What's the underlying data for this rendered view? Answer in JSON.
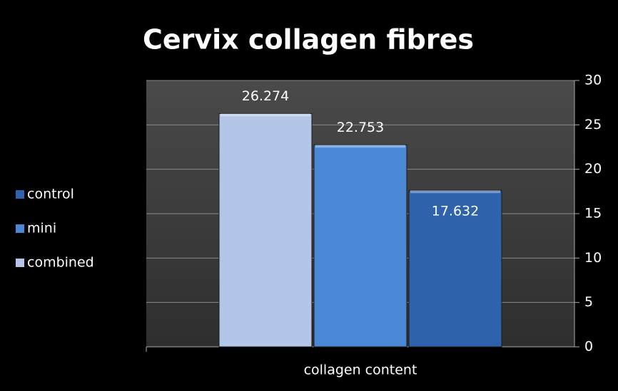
{
  "chart_data": {
    "type": "bar",
    "title": "Cervix collagen fibres",
    "categories": [
      "collagen content"
    ],
    "series": [
      {
        "name": "control",
        "color": "#2f62ad",
        "values": [
          17.632
        ]
      },
      {
        "name": "mini",
        "color": "#4a88d6",
        "values": [
          22.753
        ]
      },
      {
        "name": "combined",
        "color": "#b3c6e8",
        "values": [
          26.274
        ]
      }
    ],
    "ylim": [
      0,
      30
    ],
    "yticks": [
      0,
      5,
      10,
      15,
      20,
      25,
      30
    ],
    "grid": true,
    "legend": "left"
  }
}
